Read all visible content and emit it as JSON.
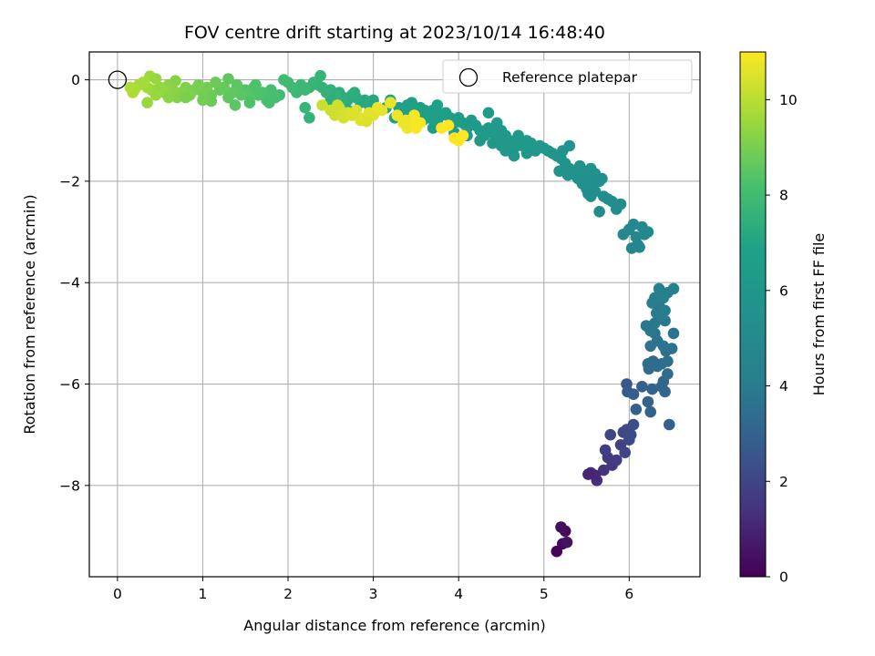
{
  "chart_data": {
    "type": "scatter",
    "title": "FOV centre drift starting at 2023/10/14 16:48:40",
    "xlabel": "Angular distance from reference (arcmin)",
    "ylabel": "Rotation from reference (arcmin)",
    "xlim": [
      -0.33,
      6.83
    ],
    "ylim": [
      -9.8,
      0.55
    ],
    "xticks": [
      0,
      1,
      2,
      3,
      4,
      5,
      6
    ],
    "yticks": [
      0,
      -2,
      -4,
      -6,
      -8
    ],
    "xtick_labels": [
      "0",
      "1",
      "2",
      "3",
      "4",
      "5",
      "6"
    ],
    "ytick_labels": [
      "0",
      "−2",
      "−4",
      "−6",
      "−8"
    ],
    "grid": true,
    "colormap": "viridis",
    "colorbar": {
      "label": "Hours from first FF file",
      "range": [
        0,
        11
      ],
      "ticks": [
        0,
        2,
        4,
        6,
        8,
        10
      ],
      "tick_labels": [
        "0",
        "2",
        "4",
        "6",
        "8",
        "10"
      ]
    },
    "legend": {
      "position": "top-right",
      "entries": [
        {
          "label": "Reference platepar",
          "marker": "open-circle"
        }
      ]
    },
    "reference_point": {
      "x": 0.0,
      "y": 0.0
    },
    "points": [
      [
        5.15,
        -9.3,
        0.1
      ],
      [
        5.22,
        -9.15,
        0.2
      ],
      [
        5.25,
        -8.9,
        0.3
      ],
      [
        5.2,
        -8.82,
        0.4
      ],
      [
        5.27,
        -9.12,
        0.5
      ],
      [
        5.55,
        -7.75,
        1.2
      ],
      [
        5.62,
        -7.9,
        1.3
      ],
      [
        5.7,
        -7.7,
        1.4
      ],
      [
        5.8,
        -7.6,
        1.5
      ],
      [
        5.75,
        -7.45,
        1.6
      ],
      [
        5.85,
        -7.5,
        1.7
      ],
      [
        5.72,
        -7.3,
        1.8
      ],
      [
        5.9,
        -7.2,
        1.9
      ],
      [
        5.95,
        -7.35,
        2.0
      ],
      [
        6.0,
        -7.1,
        2.1
      ],
      [
        5.97,
        -6.9,
        2.2
      ],
      [
        6.05,
        -6.8,
        2.3
      ],
      [
        5.6,
        -7.8,
        1.1
      ],
      [
        5.52,
        -7.78,
        1.0
      ],
      [
        5.78,
        -7.0,
        2.0
      ],
      [
        6.02,
        -7.0,
        2.2
      ],
      [
        5.93,
        -6.95,
        2.1
      ],
      [
        5.97,
        -6.0,
        2.6
      ],
      [
        5.98,
        -6.15,
        2.7
      ],
      [
        6.05,
        -6.2,
        2.8
      ],
      [
        6.08,
        -6.5,
        2.9
      ],
      [
        6.15,
        -6.05,
        2.9
      ],
      [
        6.22,
        -6.35,
        3.0
      ],
      [
        6.25,
        -6.55,
        3.0
      ],
      [
        6.27,
        -6.1,
        3.1
      ],
      [
        6.38,
        -6.05,
        3.1
      ],
      [
        6.4,
        -5.95,
        3.2
      ],
      [
        6.42,
        -6.15,
        3.2
      ],
      [
        6.47,
        -6.8,
        3.0
      ],
      [
        6.23,
        -5.7,
        3.3
      ],
      [
        6.28,
        -5.55,
        3.3
      ],
      [
        6.33,
        -5.65,
        3.4
      ],
      [
        6.38,
        -5.6,
        3.4
      ],
      [
        6.43,
        -5.35,
        3.5
      ],
      [
        6.45,
        -5.55,
        3.5
      ],
      [
        6.45,
        -5.8,
        3.4
      ],
      [
        6.22,
        -5.6,
        3.4
      ],
      [
        6.25,
        -5.25,
        3.6
      ],
      [
        6.3,
        -5.0,
        3.7
      ],
      [
        6.33,
        -5.15,
        3.7
      ],
      [
        6.4,
        -5.25,
        3.6
      ],
      [
        6.42,
        -4.75,
        3.8
      ],
      [
        6.5,
        -5.3,
        3.6
      ],
      [
        6.52,
        -5.0,
        3.7
      ],
      [
        6.2,
        -4.85,
        3.8
      ],
      [
        6.25,
        -4.95,
        3.8
      ],
      [
        6.3,
        -4.8,
        3.9
      ],
      [
        6.35,
        -4.45,
        4.0
      ],
      [
        6.32,
        -4.6,
        4.0
      ],
      [
        6.38,
        -4.65,
        4.0
      ],
      [
        6.27,
        -4.4,
        4.1
      ],
      [
        6.3,
        -4.3,
        4.1
      ],
      [
        6.4,
        -4.3,
        4.2
      ],
      [
        6.45,
        -4.2,
        4.2
      ],
      [
        6.52,
        -4.12,
        4.3
      ],
      [
        6.35,
        -4.12,
        4.3
      ],
      [
        6.42,
        -4.55,
        4.1
      ],
      [
        5.93,
        -3.05,
        4.8
      ],
      [
        6.0,
        -2.95,
        4.8
      ],
      [
        6.05,
        -2.85,
        4.9
      ],
      [
        6.08,
        -3.1,
        4.8
      ],
      [
        6.1,
        -3.25,
        4.7
      ],
      [
        6.15,
        -2.9,
        4.9
      ],
      [
        6.18,
        -3.05,
        4.8
      ],
      [
        6.22,
        -3.0,
        4.9
      ],
      [
        6.03,
        -3.32,
        4.7
      ],
      [
        6.12,
        -3.3,
        4.7
      ],
      [
        5.85,
        -2.55,
        5.1
      ],
      [
        5.8,
        -2.4,
        5.2
      ],
      [
        5.75,
        -2.35,
        5.2
      ],
      [
        5.65,
        -2.6,
        5.0
      ],
      [
        5.7,
        -2.3,
        5.3
      ],
      [
        5.6,
        -2.2,
        5.4
      ],
      [
        5.55,
        -2.3,
        5.4
      ],
      [
        5.5,
        -2.15,
        5.5
      ],
      [
        5.45,
        -2.05,
        5.5
      ],
      [
        5.4,
        -1.95,
        5.6
      ],
      [
        5.35,
        -1.85,
        5.6
      ],
      [
        5.3,
        -1.75,
        5.7
      ],
      [
        5.25,
        -1.65,
        5.7
      ],
      [
        5.2,
        -1.55,
        5.8
      ],
      [
        5.15,
        -1.5,
        5.8
      ],
      [
        5.1,
        -1.45,
        5.9
      ],
      [
        5.05,
        -1.4,
        5.9
      ],
      [
        5.0,
        -1.35,
        6.0
      ],
      [
        5.3,
        -1.3,
        5.8
      ],
      [
        5.22,
        -1.4,
        5.8
      ],
      [
        5.18,
        -1.8,
        5.6
      ],
      [
        5.42,
        -1.7,
        5.7
      ],
      [
        5.48,
        -1.8,
        5.6
      ],
      [
        5.55,
        -1.75,
        5.6
      ],
      [
        5.6,
        -1.85,
        5.5
      ],
      [
        5.65,
        -2.0,
        5.4
      ],
      [
        5.58,
        -2.0,
        5.4
      ],
      [
        5.68,
        -1.95,
        5.4
      ],
      [
        5.5,
        -1.95,
        5.5
      ],
      [
        5.38,
        -1.9,
        5.5
      ],
      [
        5.28,
        -1.88,
        5.6
      ],
      [
        5.52,
        -2.25,
        5.3
      ],
      [
        5.9,
        -2.45,
        5.2
      ],
      [
        4.95,
        -1.3,
        6.0
      ],
      [
        4.9,
        -1.4,
        6.0
      ],
      [
        4.85,
        -1.25,
        6.1
      ],
      [
        4.8,
        -1.45,
        6.0
      ],
      [
        4.75,
        -1.3,
        6.1
      ],
      [
        4.7,
        -1.2,
        6.1
      ],
      [
        4.65,
        -1.35,
        6.1
      ],
      [
        4.6,
        -1.2,
        6.2
      ],
      [
        4.55,
        -1.1,
        6.2
      ],
      [
        4.5,
        -1.0,
        6.2
      ],
      [
        4.45,
        -1.15,
        6.2
      ],
      [
        4.4,
        -1.05,
        6.3
      ],
      [
        4.35,
        -0.95,
        6.3
      ],
      [
        4.3,
        -1.1,
        6.3
      ],
      [
        4.25,
        -1.0,
        6.3
      ],
      [
        4.2,
        -0.9,
        6.4
      ],
      [
        4.15,
        -0.8,
        6.4
      ],
      [
        4.1,
        -0.95,
        6.4
      ],
      [
        4.05,
        -0.85,
        6.4
      ],
      [
        4.0,
        -0.75,
        6.5
      ],
      [
        3.95,
        -0.85,
        6.5
      ],
      [
        3.9,
        -0.75,
        6.5
      ],
      [
        3.85,
        -0.65,
        6.6
      ],
      [
        3.8,
        -0.7,
        6.6
      ],
      [
        3.75,
        -0.8,
        6.6
      ],
      [
        3.7,
        -0.6,
        6.6
      ],
      [
        3.65,
        -0.75,
        6.6
      ],
      [
        3.6,
        -0.6,
        6.7
      ],
      [
        3.55,
        -0.55,
        6.7
      ],
      [
        3.5,
        -0.7,
        6.7
      ],
      [
        3.45,
        -0.6,
        6.7
      ],
      [
        3.4,
        -0.5,
        6.8
      ],
      [
        3.35,
        -0.65,
        6.8
      ],
      [
        3.3,
        -0.55,
        6.8
      ],
      [
        3.25,
        -0.75,
        6.8
      ],
      [
        4.35,
        -0.65,
        6.4
      ],
      [
        4.4,
        -1.25,
        6.2
      ],
      [
        4.55,
        -1.4,
        6.1
      ],
      [
        4.65,
        -1.5,
        6.0
      ],
      [
        4.7,
        -1.1,
        6.2
      ],
      [
        4.8,
        -1.2,
        6.1
      ],
      [
        4.5,
        -1.3,
        6.1
      ],
      [
        4.25,
        -1.2,
        6.2
      ],
      [
        4.45,
        -0.85,
        6.3
      ],
      [
        4.1,
        -1.1,
        6.3
      ],
      [
        3.58,
        -0.8,
        6.6
      ],
      [
        3.7,
        -0.95,
        6.5
      ],
      [
        3.95,
        -1.05,
        6.4
      ],
      [
        3.45,
        -0.45,
        6.8
      ],
      [
        3.75,
        -0.5,
        6.7
      ],
      [
        3.2,
        -0.4,
        7.0
      ],
      [
        3.15,
        -0.55,
        7.0
      ],
      [
        3.0,
        -0.4,
        7.1
      ],
      [
        2.95,
        -0.5,
        7.1
      ],
      [
        2.9,
        -0.4,
        7.2
      ],
      [
        2.85,
        -0.45,
        7.2
      ],
      [
        2.8,
        -0.35,
        7.3
      ],
      [
        2.75,
        -0.3,
        7.3
      ],
      [
        2.7,
        -0.4,
        7.3
      ],
      [
        2.65,
        -0.35,
        7.4
      ],
      [
        2.6,
        -0.25,
        7.4
      ],
      [
        2.55,
        -0.3,
        7.5
      ],
      [
        2.5,
        -0.2,
        7.5
      ],
      [
        2.45,
        -0.25,
        7.6
      ],
      [
        2.4,
        -0.15,
        7.6
      ],
      [
        2.35,
        -0.1,
        7.6
      ],
      [
        2.38,
        0.08,
        7.7
      ],
      [
        2.3,
        -0.05,
        7.7
      ],
      [
        2.25,
        -0.15,
        7.7
      ],
      [
        2.2,
        -0.2,
        7.8
      ],
      [
        2.15,
        -0.1,
        7.8
      ],
      [
        2.1,
        -0.25,
        7.8
      ],
      [
        2.05,
        -0.15,
        7.9
      ],
      [
        2.0,
        -0.05,
        7.9
      ],
      [
        1.95,
        0.0,
        8.0
      ],
      [
        2.5,
        -0.4,
        7.4
      ],
      [
        2.62,
        -0.55,
        7.3
      ],
      [
        2.7,
        -0.6,
        7.2
      ],
      [
        2.78,
        -0.25,
        7.4
      ],
      [
        2.98,
        -0.6,
        7.0
      ],
      [
        2.25,
        -0.75,
        7.6
      ],
      [
        2.2,
        -0.55,
        7.7
      ],
      [
        1.9,
        -0.3,
        8.0
      ],
      [
        1.85,
        -0.35,
        8.1
      ],
      [
        1.8,
        -0.2,
        8.1
      ],
      [
        1.75,
        -0.4,
        8.2
      ],
      [
        1.7,
        -0.25,
        8.2
      ],
      [
        1.65,
        -0.3,
        8.3
      ],
      [
        1.6,
        -0.15,
        8.3
      ],
      [
        1.55,
        -0.35,
        8.4
      ],
      [
        1.5,
        -0.2,
        8.4
      ],
      [
        1.45,
        -0.3,
        8.5
      ],
      [
        1.4,
        -0.1,
        8.5
      ],
      [
        1.35,
        -0.25,
        8.6
      ],
      [
        1.3,
        -0.35,
        8.6
      ],
      [
        1.25,
        -0.15,
        8.7
      ],
      [
        1.2,
        -0.2,
        8.7
      ],
      [
        1.15,
        -0.05,
        8.8
      ],
      [
        1.1,
        -0.3,
        8.8
      ],
      [
        1.05,
        -0.15,
        8.9
      ],
      [
        1.0,
        -0.25,
        8.9
      ],
      [
        0.95,
        -0.1,
        9.0
      ],
      [
        0.9,
        -0.2,
        9.0
      ],
      [
        0.85,
        -0.3,
        9.1
      ],
      [
        0.8,
        -0.15,
        9.1
      ],
      [
        0.75,
        -0.25,
        9.2
      ],
      [
        0.7,
        -0.35,
        9.2
      ],
      [
        0.65,
        -0.2,
        9.3
      ],
      [
        0.6,
        -0.1,
        9.3
      ],
      [
        0.55,
        -0.25,
        9.4
      ],
      [
        0.5,
        -0.15,
        9.4
      ],
      [
        0.45,
        -0.3,
        9.5
      ],
      [
        0.4,
        -0.2,
        9.5
      ],
      [
        0.38,
        0.07,
        9.6
      ],
      [
        0.35,
        -0.15,
        9.6
      ],
      [
        0.3,
        -0.05,
        9.7
      ],
      [
        0.25,
        -0.1,
        9.7
      ],
      [
        0.2,
        -0.2,
        9.8
      ],
      [
        0.15,
        -0.15,
        9.8
      ],
      [
        1.3,
        0.02,
        8.6
      ],
      [
        1.1,
        -0.42,
        8.8
      ],
      [
        0.68,
        -0.02,
        9.2
      ],
      [
        0.35,
        -0.45,
        9.5
      ],
      [
        0.8,
        -0.35,
        9.0
      ],
      [
        1.55,
        -0.45,
        8.3
      ],
      [
        1.78,
        -0.45,
        8.1
      ],
      [
        1.38,
        -0.5,
        8.5
      ],
      [
        1.0,
        -0.4,
        8.9
      ],
      [
        0.6,
        -0.35,
        9.3
      ],
      [
        0.18,
        -0.25,
        9.8
      ],
      [
        0.45,
        0.02,
        9.5
      ],
      [
        1.62,
        -0.1,
        8.3
      ],
      [
        2.4,
        -0.5,
        10.2
      ],
      [
        2.5,
        -0.6,
        10.3
      ],
      [
        2.55,
        -0.7,
        10.3
      ],
      [
        2.6,
        -0.55,
        10.4
      ],
      [
        2.65,
        -0.75,
        10.4
      ],
      [
        2.7,
        -0.65,
        10.4
      ],
      [
        2.75,
        -0.7,
        10.5
      ],
      [
        2.8,
        -0.6,
        10.5
      ],
      [
        2.85,
        -0.8,
        10.5
      ],
      [
        2.9,
        -0.75,
        10.6
      ],
      [
        2.95,
        -0.65,
        10.6
      ],
      [
        3.0,
        -0.7,
        10.6
      ],
      [
        3.05,
        -0.55,
        10.7
      ],
      [
        3.1,
        -0.6,
        10.7
      ],
      [
        3.2,
        -0.45,
        10.7
      ],
      [
        3.28,
        -0.7,
        10.8
      ],
      [
        3.35,
        -0.85,
        10.8
      ],
      [
        3.4,
        -0.95,
        10.8
      ],
      [
        3.45,
        -0.8,
        10.9
      ],
      [
        3.5,
        -0.95,
        10.9
      ],
      [
        3.55,
        -0.85,
        10.9
      ],
      [
        3.48,
        -0.7,
        10.9
      ],
      [
        3.8,
        -0.95,
        11.0
      ],
      [
        3.88,
        -0.9,
        11.0
      ],
      [
        3.95,
        -1.15,
        11.0
      ],
      [
        4.0,
        -1.2,
        11.0
      ],
      [
        4.05,
        -1.1,
        11.0
      ],
      [
        2.58,
        -0.5,
        10.3
      ],
      [
        2.92,
        -0.82,
        10.5
      ],
      [
        3.38,
        -0.8,
        10.8
      ]
    ]
  }
}
